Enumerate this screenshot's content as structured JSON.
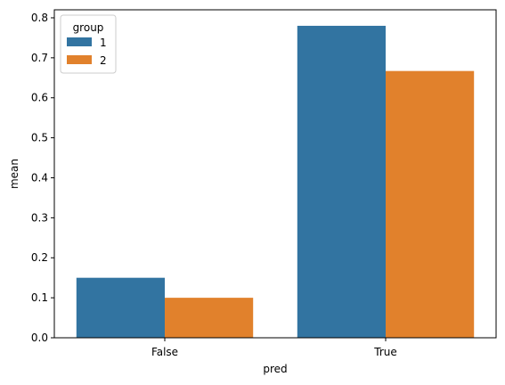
{
  "chart_data": {
    "type": "bar",
    "title": "",
    "xlabel": "pred",
    "ylabel": "mean",
    "categories": [
      "False",
      "True"
    ],
    "series": [
      {
        "name": "1",
        "values": [
          0.15,
          0.78
        ],
        "color": "#3274a1"
      },
      {
        "name": "2",
        "values": [
          0.1,
          0.667
        ],
        "color": "#e1812c"
      }
    ],
    "ylim": [
      0,
      0.82
    ],
    "yticks": [
      0.0,
      0.1,
      0.2,
      0.3,
      0.4,
      0.5,
      0.6,
      0.7,
      0.8
    ],
    "ytick_labels": [
      "0.0",
      "0.1",
      "0.2",
      "0.3",
      "0.4",
      "0.5",
      "0.6",
      "0.7",
      "0.8"
    ],
    "grid": false,
    "legend": {
      "title": "group",
      "placement": "top-left"
    }
  }
}
